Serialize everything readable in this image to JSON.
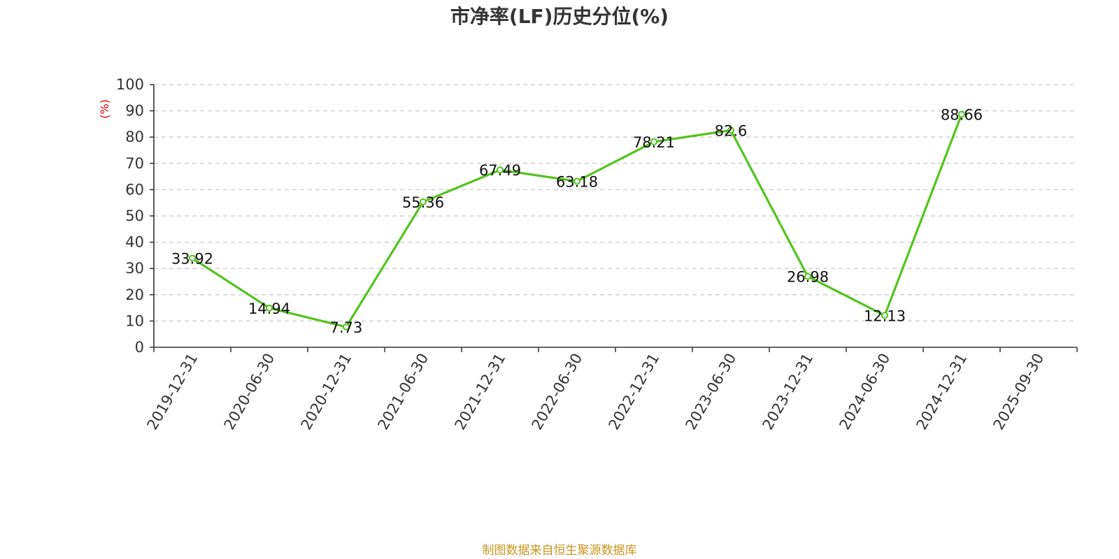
{
  "chart_data": {
    "type": "line",
    "title": "市净率(LF)历史分位(%)",
    "ylabel": "(%)",
    "xlabel": "",
    "ylim": [
      0,
      100
    ],
    "yticks": [
      0,
      10,
      20,
      30,
      40,
      50,
      60,
      70,
      80,
      90,
      100
    ],
    "categories": [
      "2019-12-31",
      "2020-06-30",
      "2020-12-31",
      "2021-06-30",
      "2021-12-31",
      "2022-06-30",
      "2022-12-31",
      "2023-06-30",
      "2023-12-31",
      "2024-06-30",
      "2024-12-31",
      "2025-09-30"
    ],
    "series": [
      {
        "values": [
          33.92,
          14.94,
          7.73,
          55.36,
          67.49,
          63.18,
          78.21,
          82.6,
          26.98,
          12.13,
          88.66,
          null
        ]
      }
    ],
    "data_labels": [
      "33.92",
      "14.94",
      "7.73",
      "55.36",
      "67.49",
      "63.18",
      "78.21",
      "82.6",
      "26.98",
      "12.13",
      "88.66",
      ""
    ],
    "grid": true,
    "line_color": "#52c41a",
    "ylabel_color": "#e60000"
  },
  "footer": {
    "source": "制图数据来自恒生聚源数据库",
    "color": "#c8961e"
  }
}
